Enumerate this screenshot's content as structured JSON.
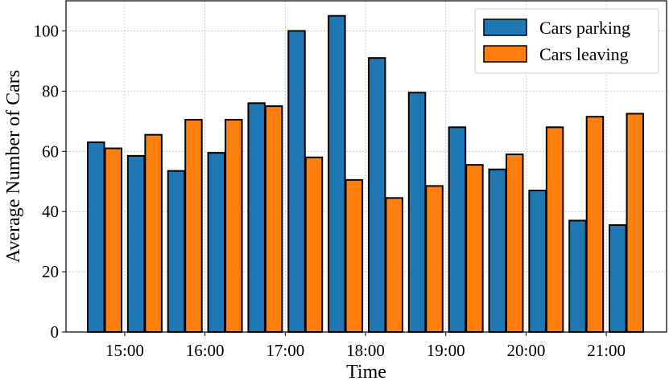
{
  "chart_data": {
    "type": "bar",
    "title": "",
    "xlabel": "Time",
    "ylabel": "Average Number of Cars",
    "ylim": [
      0,
      110
    ],
    "yticks": [
      0,
      20,
      40,
      60,
      80,
      100
    ],
    "x_tick_labels": [
      "15:00",
      "16:00",
      "17:00",
      "18:00",
      "19:00",
      "20:00",
      "21:00"
    ],
    "grid": true,
    "legend_position": "top-right",
    "colors": {
      "parking": "#1f77b4",
      "leaving": "#ff7f0e",
      "edge": "#000000",
      "grid": "#b0b0b0"
    },
    "groups": 14,
    "series": [
      {
        "name": "Cars parking",
        "values": [
          63,
          58.5,
          53.5,
          59.5,
          76,
          100,
          105,
          91,
          79.5,
          68,
          54,
          47,
          37,
          35.5
        ]
      },
      {
        "name": "Cars leaving",
        "values": [
          61,
          65.5,
          70.5,
          70.5,
          75,
          58,
          50.5,
          44.5,
          48.5,
          55.5,
          59,
          68,
          71.5,
          72.5
        ]
      }
    ]
  }
}
